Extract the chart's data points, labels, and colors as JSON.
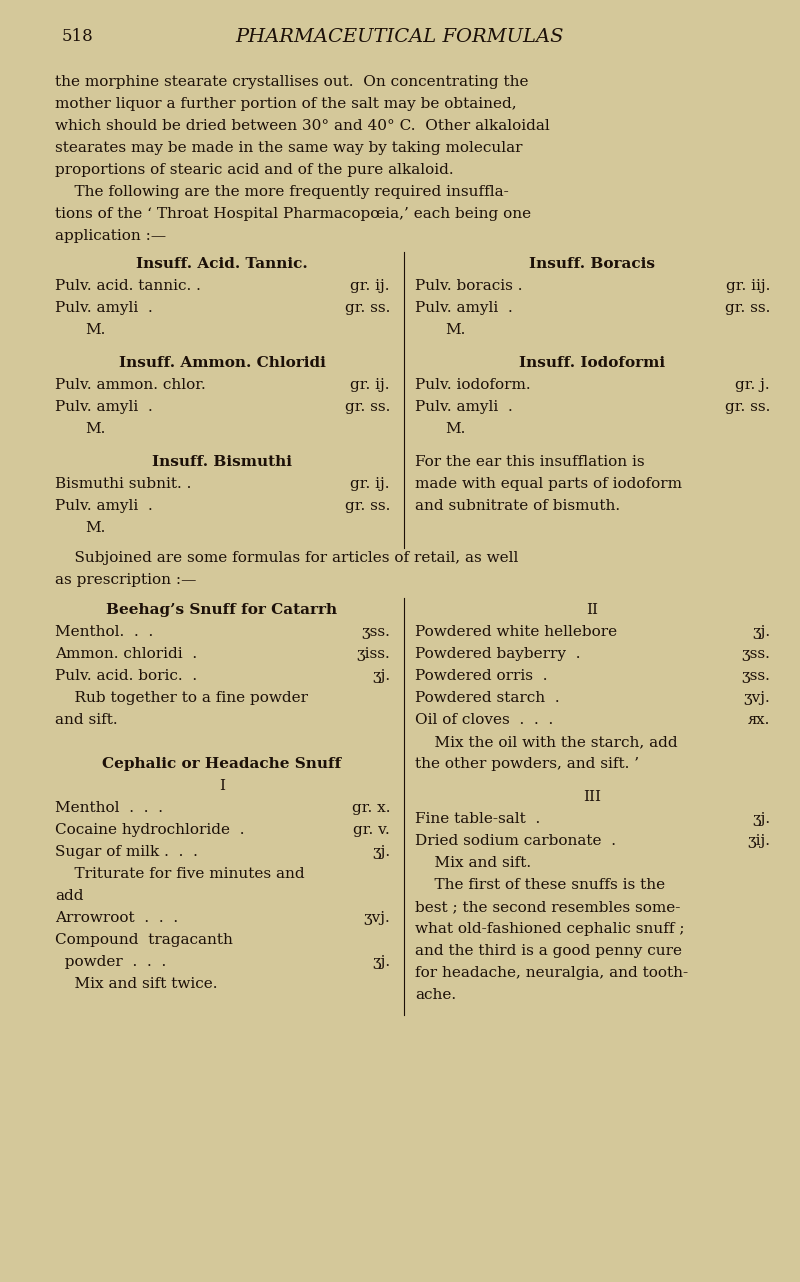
{
  "bg_color": "#d4c89a",
  "text_color": "#1c1008",
  "page_number": "518",
  "page_title": "PHARMACEUTICAL FORMULAS",
  "body_lines": [
    "the morphine stearate crystallises out.  On concentrating the",
    "mother liquor a further portion of the salt may be obtained,",
    "which should be dried between 30° and 40° C.  Other alkaloidal",
    "stearates may be made in the same way by taking molecular",
    "proportions of stearic acid and of the pure alkaloid.",
    "    The following are the more frequently required insuffla-",
    "tions of the ‘ Throat Hospital Pharmacopœia,’ each being one",
    "application :—"
  ],
  "subjoined_lines": [
    "    Subjoined are some formulas for articles of retail, as well",
    "as prescription :—"
  ],
  "left_col": [
    {
      "type": "heading",
      "text": "Insuff. Acid. Tannic.",
      "bold": true
    },
    {
      "type": "row",
      "left": "Pulv. acid. tannic. .",
      "right": "gr. ij."
    },
    {
      "type": "row",
      "left": "Pulv. amyli  .",
      "right": "gr. ss."
    },
    {
      "type": "indent",
      "text": "M."
    },
    {
      "type": "gap"
    },
    {
      "type": "heading",
      "text": "Insuff. Ammon. Chloridi",
      "bold": true
    },
    {
      "type": "row",
      "left": "Pulv. ammon. chlor.",
      "right": "gr. ij."
    },
    {
      "type": "row",
      "left": "Pulv. amyli  .",
      "right": "gr. ss."
    },
    {
      "type": "indent",
      "text": "M."
    },
    {
      "type": "gap"
    },
    {
      "type": "heading",
      "text": "Insuff. Bismuthi",
      "bold": true
    },
    {
      "type": "row",
      "left": "Bismuthi subnit. .",
      "right": "gr. ij."
    },
    {
      "type": "row",
      "left": "Pulv. amyli  .",
      "right": "gr. ss."
    },
    {
      "type": "indent",
      "text": "M."
    }
  ],
  "right_col": [
    {
      "type": "heading",
      "text": "Insuff. Boracis",
      "bold": true
    },
    {
      "type": "row",
      "left": "Pulv. boracis .",
      "right": "gr. iij."
    },
    {
      "type": "row",
      "left": "Pulv. amyli  .",
      "right": "gr. ss."
    },
    {
      "type": "indent",
      "text": "M."
    },
    {
      "type": "gap"
    },
    {
      "type": "heading",
      "text": "Insuff. Iodoformi",
      "bold": true
    },
    {
      "type": "row",
      "left": "Pulv. iodoform.",
      "right": "gr. j."
    },
    {
      "type": "row",
      "left": "Pulv. amyli  .",
      "right": "gr. ss."
    },
    {
      "type": "indent",
      "text": "M."
    },
    {
      "type": "gap"
    },
    {
      "type": "text",
      "text": "For the ear this insufflation is"
    },
    {
      "type": "text",
      "text": "made with equal parts of iodoform"
    },
    {
      "type": "text",
      "text": "and subnitrate of bismuth."
    }
  ],
  "left_col2": [
    {
      "type": "heading",
      "text": "Beehag’s Snuff for Catarrh",
      "bold": true
    },
    {
      "type": "row",
      "left": "Menthol.  .  .",
      "right": "ʒss."
    },
    {
      "type": "row",
      "left": "Ammon. chloridi  .",
      "right": "ʒiss."
    },
    {
      "type": "row",
      "left": "Pulv. acid. boric.  .",
      "right": "ʒj."
    },
    {
      "type": "text",
      "text": "    Rub together to a fine powder"
    },
    {
      "type": "text",
      "text": "and sift."
    },
    {
      "type": "gap"
    },
    {
      "type": "gap"
    },
    {
      "type": "heading",
      "text": "Cephalic or Headache Snuff",
      "bold": true
    },
    {
      "type": "center",
      "text": "I"
    },
    {
      "type": "row",
      "left": "Menthol  .  .  .",
      "right": "gr. x."
    },
    {
      "type": "row",
      "left": "Cocaine hydrochloride  .",
      "right": "gr. v."
    },
    {
      "type": "row",
      "left": "Sugar of milk .  .  .",
      "right": "ʒj."
    },
    {
      "type": "text",
      "text": "    Triturate for five minutes and"
    },
    {
      "type": "text",
      "text": "add"
    },
    {
      "type": "row",
      "left": "Arrowroot  .  .  .",
      "right": "ʒvj."
    },
    {
      "type": "text",
      "text": "Compound  tragacanth"
    },
    {
      "type": "row",
      "left": "  powder  .  .  .",
      "right": "ʒj."
    },
    {
      "type": "text",
      "text": "    Mix and sift twice."
    }
  ],
  "right_col2": [
    {
      "type": "center",
      "text": "II"
    },
    {
      "type": "row",
      "left": "Powdered white hellebore",
      "right": "ʒj."
    },
    {
      "type": "row",
      "left": "Powdered bayberry  .",
      "right": "ʒss."
    },
    {
      "type": "row",
      "left": "Powdered orris  .",
      "right": "ʒss."
    },
    {
      "type": "row",
      "left": "Powdered starch  .",
      "right": "ʒvj."
    },
    {
      "type": "row",
      "left": "Oil of cloves  .  .  .",
      "right": "ᴙx."
    },
    {
      "type": "text",
      "text": "    Mix the oil with the starch, add"
    },
    {
      "type": "text",
      "text": "the other powders, and sift. ’"
    },
    {
      "type": "gap"
    },
    {
      "type": "center",
      "text": "III"
    },
    {
      "type": "row",
      "left": "Fine table-salt  .",
      "right": "ʒj."
    },
    {
      "type": "row",
      "left": "Dried sodium carbonate  .",
      "right": "ʒij."
    },
    {
      "type": "text",
      "text": "    Mix and sift."
    },
    {
      "type": "text",
      "text": "    The first of these snuffs is the"
    },
    {
      "type": "text",
      "text": "best ; the second resembles some-"
    },
    {
      "type": "text",
      "text": "what old-fashioned cephalic snuff ;"
    },
    {
      "type": "text",
      "text": "and the third is a good penny cure"
    },
    {
      "type": "text",
      "text": "for headache, neuralgia, and tooth-"
    },
    {
      "type": "text",
      "text": "ache."
    }
  ]
}
